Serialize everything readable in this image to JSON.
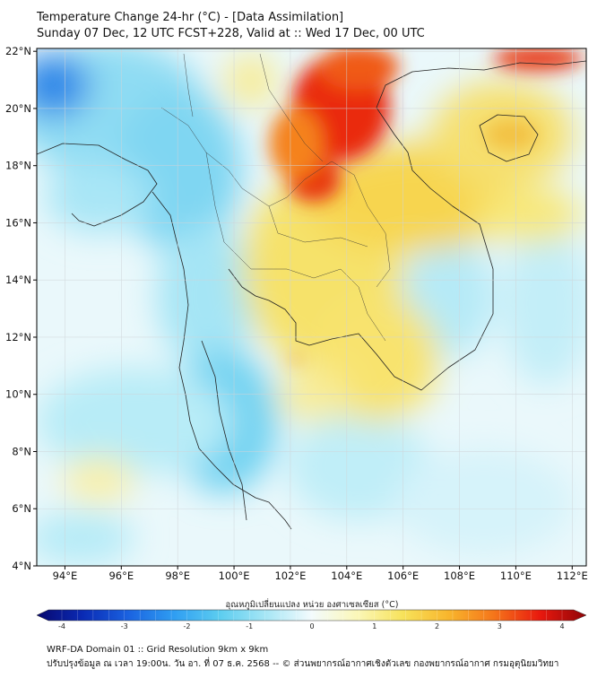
{
  "header": {
    "title_line1": "Temperature Change 24-hr (°C) - [Data Assimilation]",
    "title_line2": "Sunday 07 Dec, 12 UTC FCST+228, Valid at :: Wed 17 Dec, 00 UTC"
  },
  "map": {
    "lon_ticks": [
      "94°E",
      "96°E",
      "98°E",
      "100°E",
      "102°E",
      "104°E",
      "106°E",
      "108°E",
      "110°E",
      "112°E"
    ],
    "lat_ticks": [
      "22°N",
      "20°N",
      "18°N",
      "16°N",
      "14°N",
      "12°N",
      "10°N",
      "8°N",
      "6°N",
      "4°N"
    ],
    "lon_range": [
      93.0,
      112.5
    ],
    "lat_range": [
      4.0,
      22.1
    ],
    "lon_tick_values": [
      94,
      96,
      98,
      100,
      102,
      104,
      106,
      108,
      110,
      112
    ],
    "lat_tick_values": [
      22,
      20,
      18,
      16,
      14,
      12,
      10,
      8,
      6,
      4
    ]
  },
  "colorbar": {
    "label": "อุณหภูมิเปลี่ยนแปลง หน่วย องศาเซลเซียส (°C)",
    "range": [
      -4,
      4
    ],
    "ticks": [
      "-4",
      "-3",
      "-2",
      "-1",
      "0",
      "1",
      "2",
      "3",
      "4"
    ],
    "tick_values": [
      -4,
      -3,
      -2,
      -1,
      0,
      1,
      2,
      3,
      4
    ],
    "colors": [
      "#08086e",
      "#0a2ab4",
      "#1a62e0",
      "#2f9ef2",
      "#5ccdf0",
      "#a6e6f5",
      "#f3fbfd",
      "#fbf7b8",
      "#f7e25a",
      "#f8b52c",
      "#f5741a",
      "#e8180e",
      "#8f0508"
    ]
  },
  "footer": {
    "line1": "WRF-DA Domain 01 :: Grid Resolution 9km x 9km",
    "line2": "ปรับปรุงข้อมูล ณ เวลา 19:00น. วัน อา. ที่ 07 ธ.ค. 2568 -- © ส่วนพยากรณ์อากาศเชิงตัวเลข กองพยากรณ์อากาศ กรมอุตุนิยมวิทยา"
  }
}
